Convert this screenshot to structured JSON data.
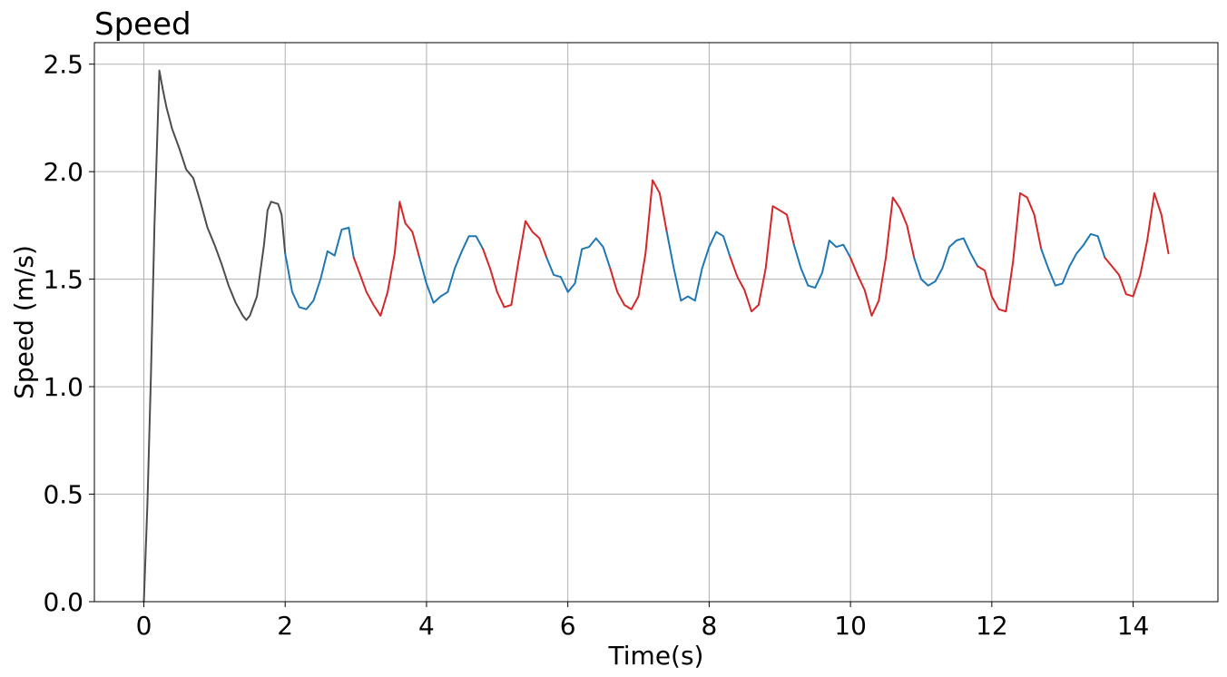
{
  "chart_data": {
    "type": "line",
    "title": "Speed",
    "xlabel": "Time(s)",
    "ylabel": "Speed (m/s)",
    "xlim": [
      -0.7,
      15.2
    ],
    "ylim": [
      0.0,
      2.6
    ],
    "xticks": [
      0,
      2,
      4,
      6,
      8,
      10,
      12,
      14
    ],
    "xtick_labels": [
      "0",
      "2",
      "4",
      "6",
      "8",
      "10",
      "12",
      "14"
    ],
    "yticks": [
      0.0,
      0.5,
      1.0,
      1.5,
      2.0,
      2.5
    ],
    "ytick_labels": [
      "0.0",
      "0.5",
      "1.0",
      "1.5",
      "2.0",
      "2.5"
    ],
    "grid": true,
    "legend": "none",
    "colors": {
      "dark_gray": "#4d4d4d",
      "blue": "#1f77b4",
      "red": "#d62728"
    },
    "segments": [
      {
        "color": "dark_gray",
        "points": [
          [
            0.0,
            0.0
          ],
          [
            0.05,
            0.45
          ],
          [
            0.1,
            1.05
          ],
          [
            0.15,
            1.75
          ],
          [
            0.22,
            2.47
          ],
          [
            0.27,
            2.38
          ],
          [
            0.32,
            2.3
          ],
          [
            0.4,
            2.2
          ],
          [
            0.5,
            2.11
          ],
          [
            0.6,
            2.01
          ],
          [
            0.7,
            1.97
          ],
          [
            0.8,
            1.86
          ],
          [
            0.9,
            1.74
          ],
          [
            1.0,
            1.66
          ],
          [
            1.1,
            1.57
          ],
          [
            1.2,
            1.47
          ],
          [
            1.3,
            1.39
          ],
          [
            1.4,
            1.33
          ],
          [
            1.45,
            1.31
          ],
          [
            1.5,
            1.33
          ],
          [
            1.6,
            1.42
          ],
          [
            1.7,
            1.66
          ],
          [
            1.75,
            1.82
          ],
          [
            1.8,
            1.86
          ],
          [
            1.9,
            1.85
          ],
          [
            1.95,
            1.8
          ],
          [
            2.0,
            1.62
          ]
        ]
      },
      {
        "color": "blue",
        "points": [
          [
            2.0,
            1.62
          ],
          [
            2.1,
            1.44
          ],
          [
            2.2,
            1.37
          ],
          [
            2.3,
            1.36
          ],
          [
            2.4,
            1.4
          ],
          [
            2.5,
            1.5
          ],
          [
            2.6,
            1.63
          ],
          [
            2.7,
            1.61
          ],
          [
            2.8,
            1.73
          ],
          [
            2.9,
            1.74
          ],
          [
            2.97,
            1.6
          ]
        ]
      },
      {
        "color": "red",
        "points": [
          [
            2.97,
            1.6
          ],
          [
            3.05,
            1.53
          ],
          [
            3.15,
            1.44
          ],
          [
            3.25,
            1.38
          ],
          [
            3.35,
            1.33
          ],
          [
            3.45,
            1.44
          ],
          [
            3.55,
            1.62
          ],
          [
            3.62,
            1.86
          ],
          [
            3.7,
            1.76
          ],
          [
            3.8,
            1.72
          ],
          [
            3.9,
            1.6
          ]
        ]
      },
      {
        "color": "blue",
        "points": [
          [
            3.9,
            1.6
          ],
          [
            4.0,
            1.48
          ],
          [
            4.1,
            1.39
          ],
          [
            4.2,
            1.42
          ],
          [
            4.3,
            1.44
          ],
          [
            4.4,
            1.55
          ],
          [
            4.5,
            1.63
          ],
          [
            4.6,
            1.7
          ],
          [
            4.7,
            1.7
          ],
          [
            4.8,
            1.64
          ]
        ]
      },
      {
        "color": "red",
        "points": [
          [
            4.8,
            1.64
          ],
          [
            4.9,
            1.55
          ],
          [
            5.0,
            1.44
          ],
          [
            5.1,
            1.37
          ],
          [
            5.2,
            1.38
          ],
          [
            5.3,
            1.58
          ],
          [
            5.4,
            1.77
          ],
          [
            5.5,
            1.72
          ],
          [
            5.6,
            1.69
          ],
          [
            5.7,
            1.6
          ]
        ]
      },
      {
        "color": "blue",
        "points": [
          [
            5.7,
            1.6
          ],
          [
            5.8,
            1.52
          ],
          [
            5.9,
            1.51
          ],
          [
            6.0,
            1.44
          ],
          [
            6.1,
            1.48
          ],
          [
            6.2,
            1.64
          ],
          [
            6.3,
            1.65
          ],
          [
            6.4,
            1.69
          ],
          [
            6.5,
            1.65
          ],
          [
            6.6,
            1.55
          ]
        ]
      },
      {
        "color": "red",
        "points": [
          [
            6.6,
            1.55
          ],
          [
            6.7,
            1.44
          ],
          [
            6.8,
            1.38
          ],
          [
            6.9,
            1.36
          ],
          [
            7.0,
            1.42
          ],
          [
            7.1,
            1.62
          ],
          [
            7.2,
            1.96
          ],
          [
            7.3,
            1.9
          ],
          [
            7.4,
            1.72
          ]
        ]
      },
      {
        "color": "blue",
        "points": [
          [
            7.4,
            1.72
          ],
          [
            7.5,
            1.55
          ],
          [
            7.6,
            1.4
          ],
          [
            7.7,
            1.42
          ],
          [
            7.8,
            1.4
          ],
          [
            7.9,
            1.55
          ],
          [
            8.0,
            1.65
          ],
          [
            8.1,
            1.72
          ],
          [
            8.2,
            1.7
          ],
          [
            8.3,
            1.6
          ]
        ]
      },
      {
        "color": "red",
        "points": [
          [
            8.3,
            1.6
          ],
          [
            8.4,
            1.51
          ],
          [
            8.5,
            1.45
          ],
          [
            8.6,
            1.35
          ],
          [
            8.7,
            1.38
          ],
          [
            8.8,
            1.55
          ],
          [
            8.9,
            1.84
          ],
          [
            9.0,
            1.82
          ],
          [
            9.1,
            1.8
          ],
          [
            9.2,
            1.66
          ]
        ]
      },
      {
        "color": "blue",
        "points": [
          [
            9.2,
            1.66
          ],
          [
            9.3,
            1.55
          ],
          [
            9.4,
            1.47
          ],
          [
            9.5,
            1.46
          ],
          [
            9.6,
            1.53
          ],
          [
            9.7,
            1.68
          ],
          [
            9.8,
            1.65
          ],
          [
            9.9,
            1.66
          ],
          [
            10.0,
            1.6
          ]
        ]
      },
      {
        "color": "red",
        "points": [
          [
            10.0,
            1.6
          ],
          [
            10.1,
            1.52
          ],
          [
            10.2,
            1.45
          ],
          [
            10.3,
            1.33
          ],
          [
            10.4,
            1.4
          ],
          [
            10.5,
            1.6
          ],
          [
            10.6,
            1.88
          ],
          [
            10.7,
            1.83
          ],
          [
            10.8,
            1.75
          ],
          [
            10.9,
            1.6
          ]
        ]
      },
      {
        "color": "blue",
        "points": [
          [
            10.9,
            1.6
          ],
          [
            11.0,
            1.5
          ],
          [
            11.1,
            1.47
          ],
          [
            11.2,
            1.49
          ],
          [
            11.3,
            1.55
          ],
          [
            11.4,
            1.65
          ],
          [
            11.5,
            1.68
          ],
          [
            11.6,
            1.69
          ],
          [
            11.7,
            1.62
          ],
          [
            11.8,
            1.56
          ]
        ]
      },
      {
        "color": "red",
        "points": [
          [
            11.8,
            1.56
          ],
          [
            11.9,
            1.54
          ],
          [
            12.0,
            1.42
          ],
          [
            12.1,
            1.36
          ],
          [
            12.2,
            1.35
          ],
          [
            12.3,
            1.58
          ],
          [
            12.4,
            1.9
          ],
          [
            12.5,
            1.88
          ],
          [
            12.6,
            1.8
          ],
          [
            12.7,
            1.64
          ]
        ]
      },
      {
        "color": "blue",
        "points": [
          [
            12.7,
            1.64
          ],
          [
            12.8,
            1.55
          ],
          [
            12.9,
            1.47
          ],
          [
            13.0,
            1.48
          ],
          [
            13.1,
            1.56
          ],
          [
            13.2,
            1.62
          ],
          [
            13.3,
            1.66
          ],
          [
            13.4,
            1.71
          ],
          [
            13.5,
            1.7
          ],
          [
            13.6,
            1.6
          ]
        ]
      },
      {
        "color": "red",
        "points": [
          [
            13.6,
            1.6
          ],
          [
            13.7,
            1.56
          ],
          [
            13.8,
            1.52
          ],
          [
            13.9,
            1.43
          ],
          [
            14.0,
            1.42
          ],
          [
            14.1,
            1.52
          ],
          [
            14.2,
            1.68
          ],
          [
            14.3,
            1.9
          ],
          [
            14.4,
            1.8
          ],
          [
            14.5,
            1.62
          ]
        ]
      }
    ]
  }
}
